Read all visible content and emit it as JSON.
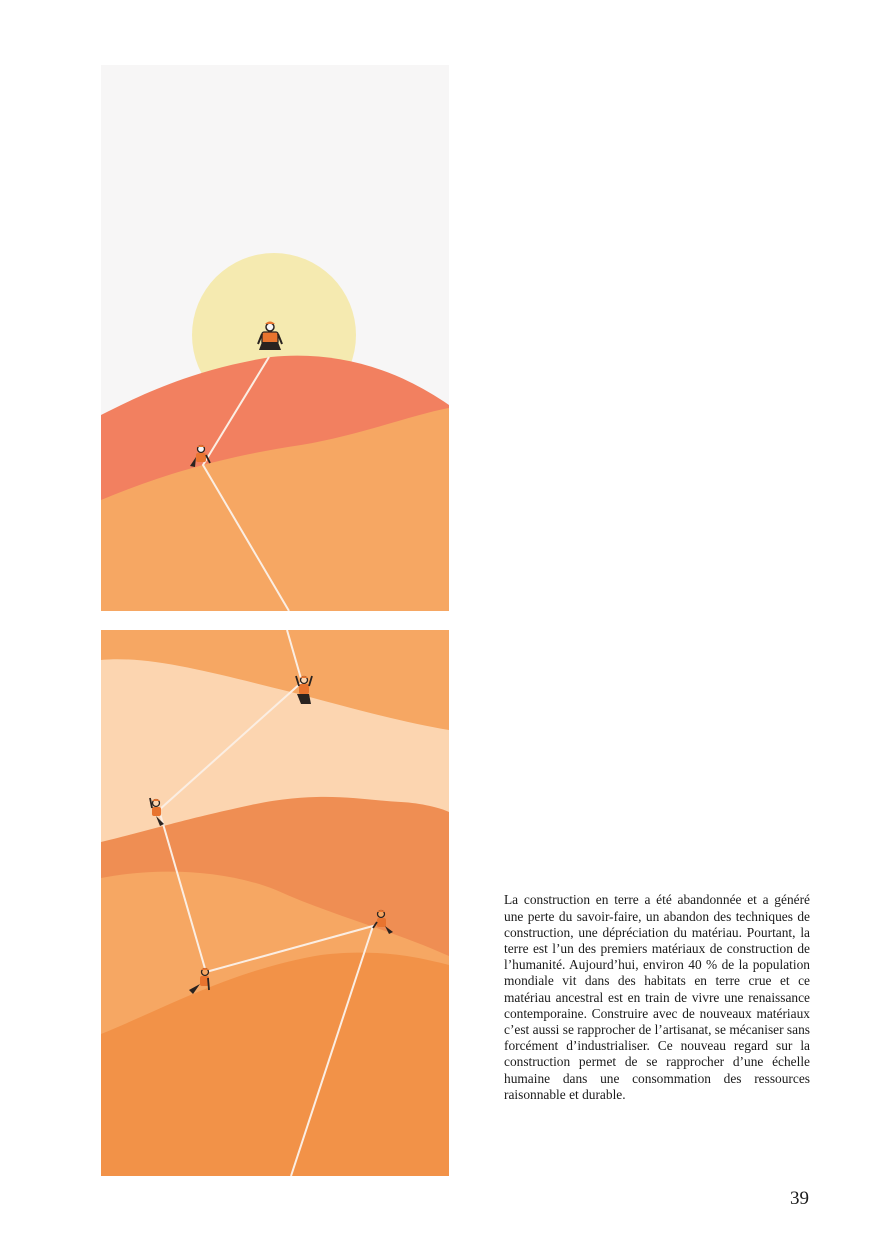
{
  "page": {
    "body_text": "La construction en terre a été abandonnée et a généré une perte du savoir-faire, un abandon des techniques de construction, une dépréciation du matériau. Pourtant, la terre est l’un des premiers matériaux de construction de l’humanité. Aujourd’hui, environ 40 % de la population mondiale vit dans des habitats en terre crue et ce matériau ancestral est en train de vivre une renaissance contemporaine. Construire avec de nouveaux matériaux c’est aussi se rapprocher de l’artisanat, se mécaniser sans forcément d’industrialiser. Ce nouveau regard sur la construction permet de se rapprocher d’une échelle humaine dans une consommation des ressources raisonnable et durable.",
    "page_number": "39"
  },
  "illustration": {
    "palette": {
      "sky": "#f7f6f6",
      "sun": "#f5eab0",
      "hill_red": "#f28060",
      "hill_orange": "#f6a763",
      "band_light": "#fcd5b0",
      "band_mid": "#ef8e53",
      "band_deep": "#f29248",
      "rope": "#fbeee3",
      "climber_dark": "#2a2320",
      "climber_orange": "#e8742f"
    },
    "icons": [
      "climber-icon"
    ]
  }
}
